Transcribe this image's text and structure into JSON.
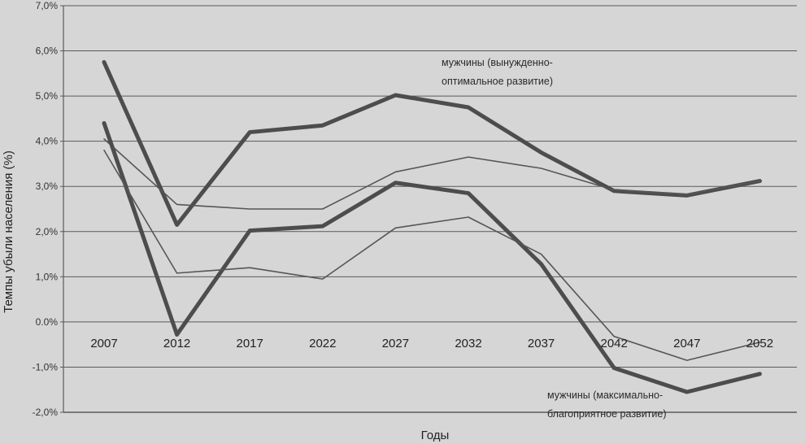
{
  "chart_data": {
    "type": "line",
    "title": "",
    "xlabel": "Годы",
    "ylabel": "Темпы убыли населения (%)",
    "ylim": [
      -2,
      7
    ],
    "y_ticks": [
      "-2,0%",
      "-1,0%",
      "0.0%",
      "1,0%",
      "2,0%",
      "3,0%",
      "4,0%",
      "5,0%",
      "6,0%",
      "7,0%"
    ],
    "categories": [
      "2007",
      "2012",
      "2017",
      "2022",
      "2027",
      "2032",
      "2037",
      "2042",
      "2047",
      "2052"
    ],
    "grid": true,
    "legend": "none",
    "series": [
      {
        "name": "мужчины (вынужденно-оптимальное развитие)",
        "style": "thick",
        "color": "#555555",
        "values": [
          5.75,
          2.15,
          4.2,
          4.35,
          5.02,
          4.75,
          3.75,
          2.9,
          2.8,
          3.12
        ]
      },
      {
        "style": "thin",
        "color": "#555555",
        "values": [
          4.05,
          2.6,
          2.5,
          2.5,
          3.32,
          3.65,
          3.4,
          2.92,
          2.82,
          3.12
        ]
      },
      {
        "name": "мужчины (максимально-благоприятное развитие)",
        "style": "thick",
        "color": "#555555",
        "values": [
          4.4,
          -0.28,
          2.02,
          2.12,
          3.08,
          2.85,
          1.28,
          -1.02,
          -1.55,
          -1.15
        ]
      },
      {
        "style": "thin",
        "color": "#555555",
        "values": [
          3.8,
          1.08,
          1.2,
          0.95,
          2.08,
          2.32,
          1.5,
          -0.32,
          -0.85,
          -0.45
        ]
      }
    ],
    "annotations": [
      {
        "lines": [
          "мужчины (вынужденно-",
          "оптимальное развитие)"
        ]
      },
      {
        "lines": [
          "мужчины (максимально-",
          "благоприятное развитие)"
        ]
      }
    ]
  }
}
